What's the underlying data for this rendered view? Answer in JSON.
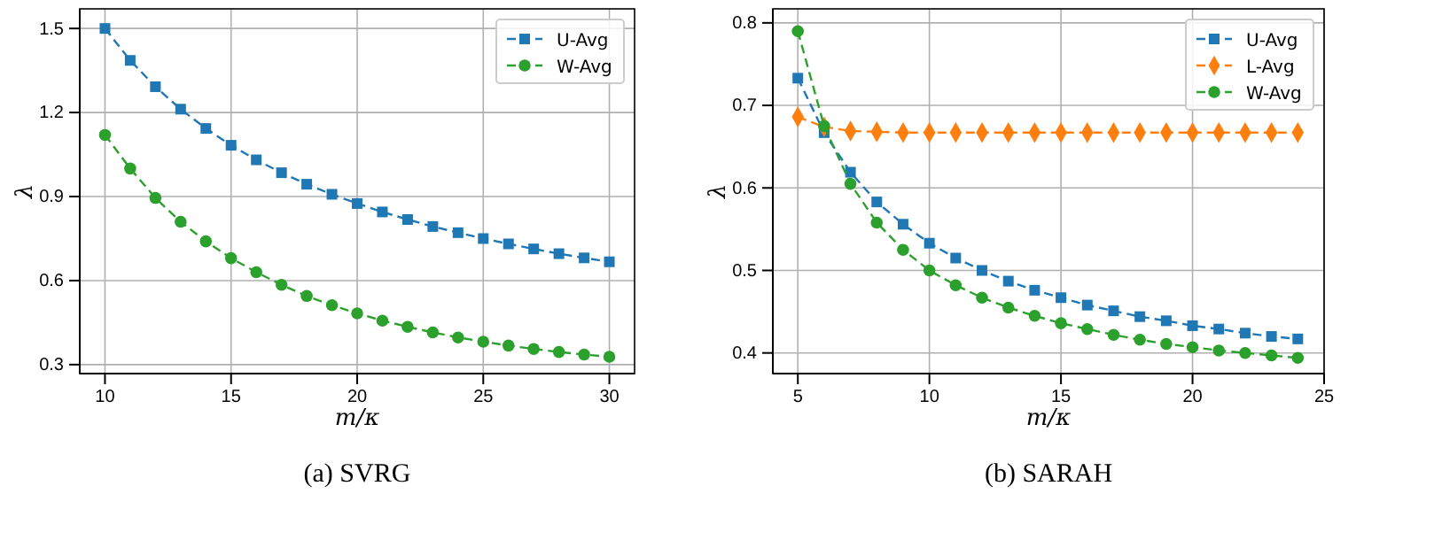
{
  "chart_data": [
    {
      "type": "line",
      "xlabel": "m/κ",
      "ylabel": "λ",
      "annotations": [
        "(a) SVRG"
      ],
      "x": [
        10,
        11,
        12,
        13,
        14,
        15,
        16,
        17,
        18,
        19,
        20,
        21,
        22,
        23,
        24,
        25,
        26,
        27,
        28,
        29,
        30
      ],
      "xlim": [
        9,
        31
      ],
      "xticks": [
        10,
        15,
        20,
        25,
        30
      ],
      "ylim": [
        0.268,
        1.57
      ],
      "yticks": [
        0.3,
        0.6,
        0.9,
        1.2,
        1.5
      ],
      "grid": true,
      "legend": "top right",
      "line_style": "dashed",
      "series": [
        {
          "name": "U-Avg",
          "color": "#1f77b4",
          "marker": "square",
          "values": [
            1.5,
            1.386,
            1.292,
            1.212,
            1.143,
            1.083,
            1.031,
            0.985,
            0.944,
            0.908,
            0.875,
            0.845,
            0.818,
            0.793,
            0.771,
            0.75,
            0.731,
            0.713,
            0.696,
            0.681,
            0.667
          ]
        },
        {
          "name": "W-Avg",
          "color": "#2ca02c",
          "marker": "circle",
          "values": [
            1.12,
            1.0,
            0.895,
            0.81,
            0.74,
            0.68,
            0.63,
            0.585,
            0.545,
            0.512,
            0.483,
            0.457,
            0.435,
            0.415,
            0.397,
            0.382,
            0.368,
            0.356,
            0.345,
            0.336,
            0.328
          ]
        }
      ]
    },
    {
      "type": "line",
      "xlabel": "m/κ",
      "ylabel": "λ",
      "annotations": [
        "(b) SARAH"
      ],
      "x": [
        5,
        6,
        7,
        8,
        9,
        10,
        11,
        12,
        13,
        14,
        15,
        16,
        17,
        18,
        19,
        20,
        21,
        22,
        23,
        24
      ],
      "xlim": [
        4.05,
        25
      ],
      "xticks": [
        5,
        10,
        15,
        20,
        25
      ],
      "ylim": [
        0.375,
        0.817
      ],
      "yticks": [
        0.4,
        0.5,
        0.6,
        0.7,
        0.8
      ],
      "grid": true,
      "legend": "top right",
      "line_style": "dashed",
      "series": [
        {
          "name": "U-Avg",
          "color": "#1f77b4",
          "marker": "square",
          "values": [
            0.733,
            0.667,
            0.619,
            0.583,
            0.556,
            0.533,
            0.515,
            0.5,
            0.487,
            0.476,
            0.467,
            0.458,
            0.451,
            0.444,
            0.439,
            0.433,
            0.429,
            0.424,
            0.42,
            0.417
          ]
        },
        {
          "name": "L-Avg",
          "color": "#ff7f0e",
          "marker": "diamond",
          "values": [
            0.686,
            0.674,
            0.669,
            0.668,
            0.667,
            0.667,
            0.667,
            0.667,
            0.667,
            0.667,
            0.667,
            0.667,
            0.667,
            0.667,
            0.667,
            0.667,
            0.667,
            0.667,
            0.667,
            0.667
          ]
        },
        {
          "name": "W-Avg",
          "color": "#2ca02c",
          "marker": "circle",
          "values": [
            0.79,
            0.675,
            0.605,
            0.558,
            0.525,
            0.5,
            0.482,
            0.467,
            0.455,
            0.445,
            0.436,
            0.429,
            0.422,
            0.416,
            0.411,
            0.407,
            0.403,
            0.4,
            0.397,
            0.394
          ]
        }
      ]
    }
  ]
}
